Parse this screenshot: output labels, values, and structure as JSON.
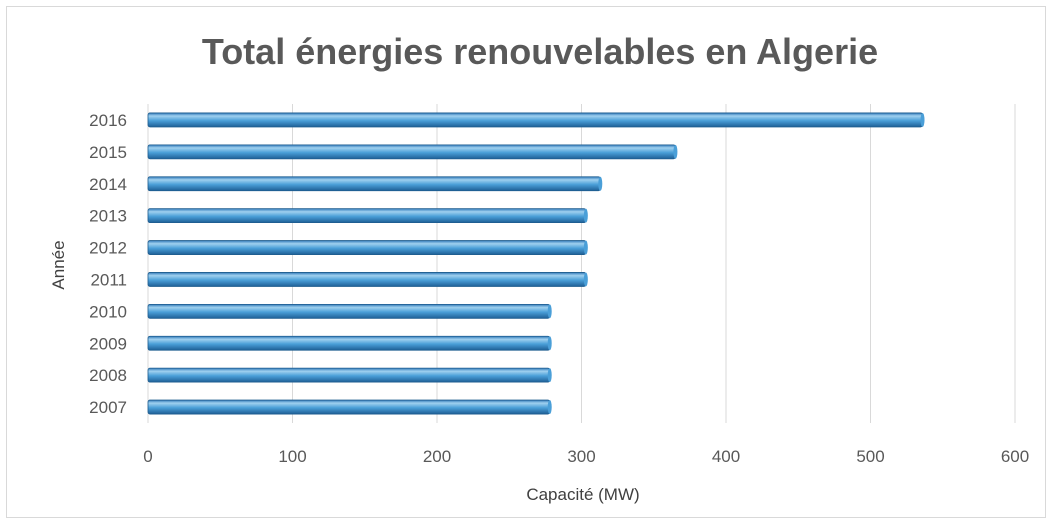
{
  "chart_data": {
    "type": "bar",
    "orientation": "horizontal",
    "title": "Total énergies renouvelables en Algerie",
    "xlabel": "Capacité (MW)",
    "ylabel": "Année",
    "categories": [
      "2016",
      "2015",
      "2014",
      "2013",
      "2012",
      "2011",
      "2010",
      "2009",
      "2008",
      "2007"
    ],
    "values": [
      536,
      365,
      313,
      303,
      303,
      303,
      278,
      278,
      278,
      278
    ],
    "xlim": [
      0,
      600
    ],
    "xticks": [
      "0",
      "100",
      "200",
      "300",
      "400",
      "500",
      "600"
    ],
    "grid": true,
    "legend": "none",
    "colors": {
      "bar_light": "#9fd0ef",
      "bar_mid": "#4a9fd8",
      "bar_dark": "#1e5f96",
      "bar_edge": "#1f5d8f",
      "grid": "#d9d9d9"
    }
  }
}
